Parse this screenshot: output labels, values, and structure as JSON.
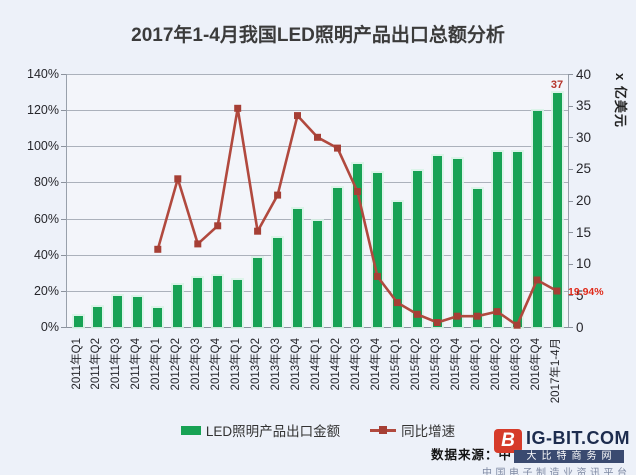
{
  "title": "2017年1-4月我国LED照明产品出口总额分析",
  "chart_data": {
    "type": "bar",
    "subtype": "bar-line-combo",
    "title": "2017年1-4月我国LED照明产品出口总额分析",
    "categories": [
      "2011年Q1",
      "2011年Q2",
      "2011年Q3",
      "2011年Q4",
      "2012年Q1",
      "2012年Q2",
      "2012年Q3",
      "2012年Q4",
      "2013年Q1",
      "2013年Q2",
      "2013年Q3",
      "2013年Q4",
      "2014年Q1",
      "2014年Q2",
      "2014年Q3",
      "2014年Q4",
      "2015年Q1",
      "2015年Q2",
      "2015年Q3",
      "2015年Q4",
      "2016年Q1",
      "2016年Q2",
      "2016年Q3",
      "2016年Q4",
      "2017年1-4月"
    ],
    "series": [
      {
        "name": "LED照明产品出口金额",
        "type": "bar",
        "axis": "right",
        "unit": "亿美元",
        "color": "#17a254",
        "values": [
          1.8,
          3.2,
          4.9,
          4.8,
          3.0,
          6.6,
          7.7,
          8.1,
          7.5,
          10.9,
          14.1,
          18.6,
          16.7,
          21.9,
          25.7,
          24.3,
          19.8,
          24.7,
          27.0,
          26.5,
          21.8,
          27.6,
          27.7,
          34.2,
          37
        ]
      },
      {
        "name": "同比增速",
        "type": "line",
        "axis": "left",
        "unit": "%",
        "color": "#b1493e",
        "marker_color": "#a63f35",
        "values": [
          null,
          null,
          null,
          null,
          43,
          82,
          46,
          56,
          121,
          53,
          73,
          117,
          105,
          99,
          75,
          28,
          13.5,
          7,
          2.5,
          6,
          6,
          8.5,
          1,
          26,
          19.94
        ]
      }
    ],
    "left_axis": {
      "ticks": [
        "0%",
        "20%",
        "40%",
        "60%",
        "80%",
        "100%",
        "120%",
        "140%"
      ],
      "min": 0,
      "max": 140
    },
    "right_axis": {
      "ticks": [
        "0",
        "5",
        "10",
        "15",
        "20",
        "25",
        "30",
        "35",
        "40"
      ],
      "min": 0,
      "max": 40,
      "title": "x 亿美元"
    },
    "annotations": [
      {
        "text": "37",
        "series": "LED照明产品出口金额",
        "category": "2017年1-4月"
      },
      {
        "text": "19.94%",
        "series": "同比增速",
        "category": "2017年1-4月"
      }
    ],
    "grid": "horizontal",
    "legend_position": "bottom"
  },
  "footer": {
    "source": "数据来源：中",
    "logo_glyph": "B",
    "logo_text": "IG-BIT.COM",
    "banner": "大比特商务网",
    "tagline": "中国电子制造业资讯平台"
  }
}
